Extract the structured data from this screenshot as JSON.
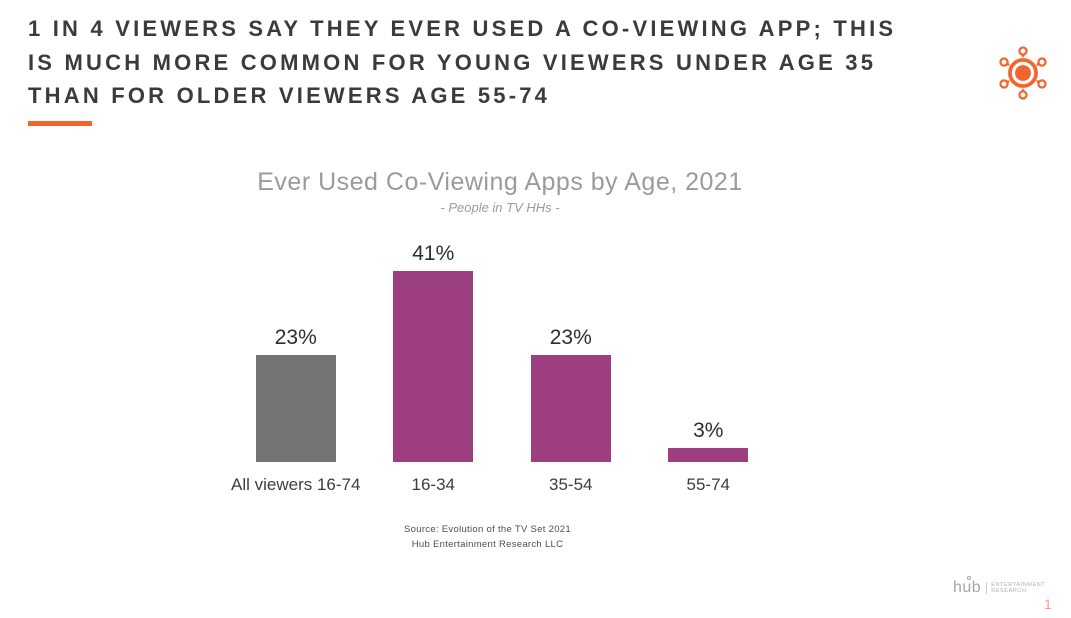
{
  "header": {
    "title_lines": [
      "1 IN 4 VIEWERS SAY THEY EVER USED A CO-VIEWING APP; THIS",
      "IS MUCH MORE COMMON FOR YOUNG VIEWERS UNDER AGE 35",
      "THAN FOR OLDER VIEWERS AGE 55-74"
    ],
    "accent_color": "#F4652E"
  },
  "chart_data": {
    "type": "bar",
    "title": "Ever Used Co-Viewing Apps by Age, 2021",
    "subtitle": "- People in TV HHs -",
    "categories": [
      "All viewers 16-74",
      "16-34",
      "35-54",
      "55-74"
    ],
    "values": [
      23,
      41,
      23,
      3
    ],
    "value_labels": [
      "23%",
      "41%",
      "23%",
      "3%"
    ],
    "colors": [
      "#747474",
      "#9C3E80",
      "#9C3E80",
      "#9C3E80"
    ],
    "ylim": [
      0,
      45
    ],
    "grid": false,
    "legend": "none",
    "axis_labels": "none",
    "source_lines": [
      "Source: Evolution of the TV Set 2021",
      "Hub Entertainment Research LLC"
    ]
  },
  "footer": {
    "logo_text": "hub",
    "logo_sub_lines": [
      "ENTERTAINMENT",
      "RESEARCH"
    ],
    "page_number": "1"
  },
  "colors": {
    "accent_orange": "#F4652E",
    "bar_purple": "#9C3E80",
    "bar_gray": "#747474",
    "title_text": "#3B3B3B",
    "chart_title_gray": "#9B9B9B",
    "page_number_salmon": "#FB9C7C"
  }
}
